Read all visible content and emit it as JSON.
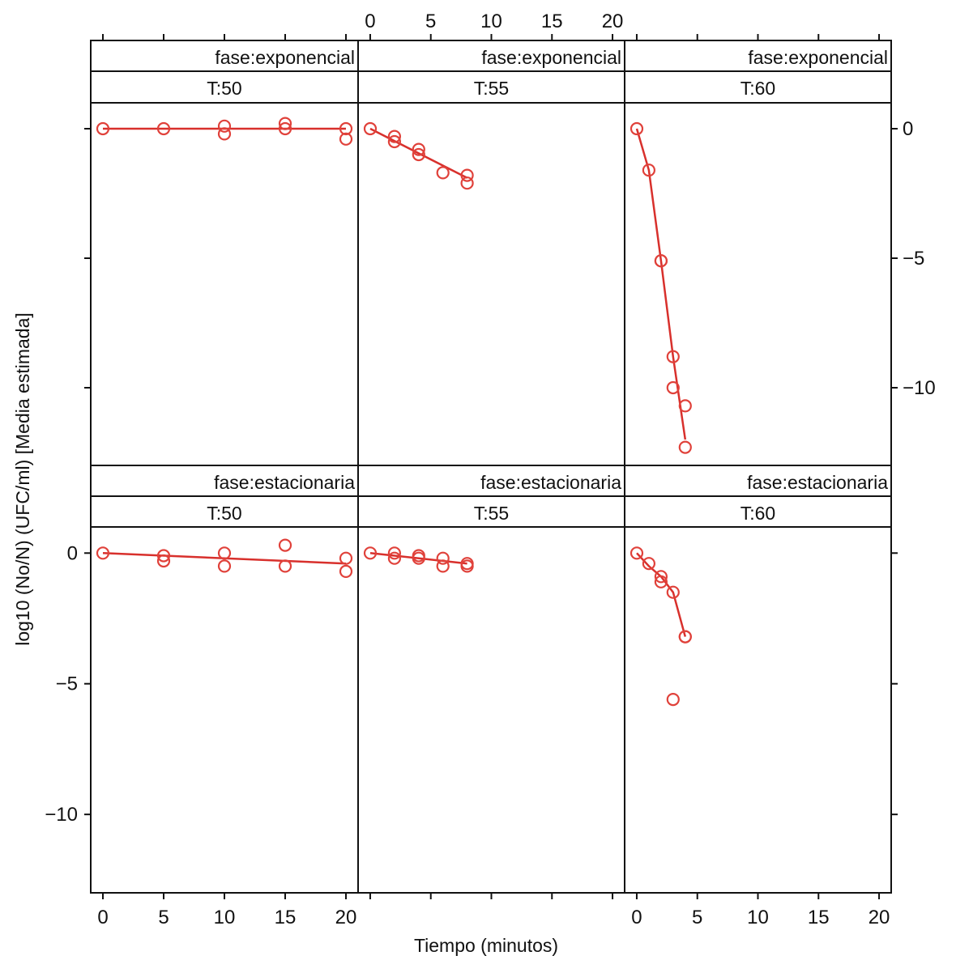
{
  "chart_data": {
    "type": "scatter",
    "layout": "trellis 3 columns x 2 rows",
    "xlabel": "Tiempo (minutos)",
    "ylabel": "log10 (No/N) (UFC/ml) [Media estimada]",
    "xlim": [
      -1,
      21
    ],
    "ylim": [
      -13,
      1
    ],
    "x_ticks": [
      0,
      5,
      10,
      15,
      20
    ],
    "y_ticks": [
      0,
      -5,
      -10
    ],
    "x_tick_labels": [
      "0",
      "5",
      "10",
      "15",
      "20"
    ],
    "y_tick_labels": [
      "0",
      "−5",
      "−10"
    ],
    "marker_color": "#e0413a",
    "line_color": "#d8302c",
    "strip_color": "#ffffff",
    "panels": [
      {
        "fase_label": "fase:exponencial",
        "temp_label": "T:50",
        "points": [
          [
            0,
            0
          ],
          [
            5,
            0
          ],
          [
            10,
            0.1
          ],
          [
            10,
            -0.2
          ],
          [
            15,
            0.2
          ],
          [
            15,
            0.0
          ],
          [
            20,
            0.0
          ],
          [
            20,
            -0.4
          ]
        ],
        "line": [
          [
            0,
            0
          ],
          [
            20,
            0.0
          ]
        ]
      },
      {
        "fase_label": "fase:exponencial",
        "temp_label": "T:55",
        "points": [
          [
            0,
            0
          ],
          [
            2,
            -0.3
          ],
          [
            2,
            -0.5
          ],
          [
            4,
            -0.8
          ],
          [
            4,
            -1.0
          ],
          [
            6,
            -1.7
          ],
          [
            8,
            -1.8
          ],
          [
            8,
            -2.1
          ]
        ],
        "line": [
          [
            0,
            0
          ],
          [
            8,
            -1.9
          ]
        ]
      },
      {
        "fase_label": "fase:exponencial",
        "temp_label": "T:60",
        "points": [
          [
            0,
            0
          ],
          [
            1,
            -1.6
          ],
          [
            2,
            -5.1
          ],
          [
            2,
            -5.1
          ],
          [
            3,
            -8.8
          ],
          [
            3,
            -10.0
          ],
          [
            4,
            -10.7
          ],
          [
            4,
            -12.3
          ]
        ],
        "line": [
          [
            0,
            0
          ],
          [
            1,
            -1.6
          ],
          [
            2,
            -5.1
          ],
          [
            3,
            -8.8
          ],
          [
            4,
            -12.0
          ]
        ]
      },
      {
        "fase_label": "fase:estacionaria",
        "temp_label": "T:50",
        "points": [
          [
            0,
            0
          ],
          [
            5,
            -0.1
          ],
          [
            5,
            -0.3
          ],
          [
            10,
            0.0
          ],
          [
            10,
            -0.5
          ],
          [
            15,
            0.3
          ],
          [
            15,
            -0.5
          ],
          [
            20,
            -0.2
          ],
          [
            20,
            -0.7
          ]
        ],
        "line": [
          [
            0,
            0
          ],
          [
            20,
            -0.4
          ]
        ]
      },
      {
        "fase_label": "fase:estacionaria",
        "temp_label": "T:55",
        "points": [
          [
            0,
            0
          ],
          [
            2,
            0.0
          ],
          [
            2,
            -0.2
          ],
          [
            4,
            -0.1
          ],
          [
            4,
            -0.2
          ],
          [
            6,
            -0.2
          ],
          [
            6,
            -0.5
          ],
          [
            8,
            -0.4
          ],
          [
            8,
            -0.5
          ]
        ],
        "line": [
          [
            0,
            0
          ],
          [
            8,
            -0.4
          ]
        ]
      },
      {
        "fase_label": "fase:estacionaria",
        "temp_label": "T:60",
        "points": [
          [
            0,
            0
          ],
          [
            1,
            -0.4
          ],
          [
            2,
            -0.9
          ],
          [
            2,
            -1.1
          ],
          [
            3,
            -1.5
          ],
          [
            3,
            -5.6
          ],
          [
            4,
            -3.2
          ],
          [
            4,
            -3.2
          ]
        ],
        "line": [
          [
            0,
            0
          ],
          [
            1,
            -0.5
          ],
          [
            2,
            -0.9
          ],
          [
            3,
            -1.5
          ],
          [
            4,
            -3.2
          ]
        ]
      }
    ]
  }
}
